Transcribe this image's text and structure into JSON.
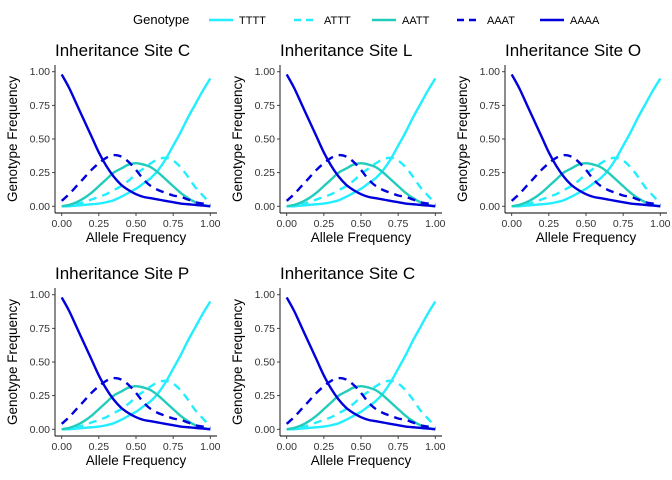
{
  "legend": {
    "title": "Genotype",
    "entries": [
      {
        "label": "TTTT",
        "color": "#22EEFF",
        "dash": "solid"
      },
      {
        "label": "ATTT",
        "color": "#22EEFF",
        "dash": "dashed"
      },
      {
        "label": "AATT",
        "color": "#22CCBB",
        "dash": "solid"
      },
      {
        "label": "AAAT",
        "color": "#0000DD",
        "dash": "dashed"
      },
      {
        "label": "AAAA",
        "color": "#0000DD",
        "dash": "solid"
      }
    ]
  },
  "chart_data": [
    {
      "type": "line",
      "title": "Inheritance Site C",
      "xlabel": "Allele Frequency",
      "ylabel": "Genotype Frequency"
    },
    {
      "type": "line",
      "title": "Inheritance Site L",
      "xlabel": "Allele Frequency",
      "ylabel": "Genotype Frequency"
    },
    {
      "type": "line",
      "title": "Inheritance Site O",
      "xlabel": "Allele Frequency",
      "ylabel": "Genotype Frequency"
    },
    {
      "type": "line",
      "title": "Inheritance Site P",
      "xlabel": "Allele Frequency",
      "ylabel": "Genotype Frequency"
    },
    {
      "type": "line",
      "title": "Inheritance Site C",
      "xlabel": "Allele Frequency",
      "ylabel": "Genotype Frequency"
    }
  ],
  "shared": {
    "xlim": [
      0,
      1
    ],
    "ylim": [
      0,
      1
    ],
    "xticks": [
      0,
      0.25,
      0.5,
      0.75,
      1
    ],
    "xtick_labels": [
      "0.00",
      "0.25",
      "0.50",
      "0.75",
      "1.00"
    ],
    "yticks": [
      0,
      0.25,
      0.5,
      0.75,
      1
    ],
    "ytick_labels": [
      "0.00",
      "0.25",
      "0.50",
      "0.75",
      "1.00"
    ],
    "grid": false,
    "legend_position": "top",
    "x": [
      0,
      0.05,
      0.1,
      0.15,
      0.2,
      0.25,
      0.3,
      0.35,
      0.4,
      0.45,
      0.5,
      0.55,
      0.6,
      0.65,
      0.7,
      0.75,
      0.8,
      0.85,
      0.9,
      0.95,
      1
    ],
    "series": [
      {
        "name": "TTTT",
        "values": [
          0.0,
          0.0,
          0.005,
          0.01,
          0.015,
          0.02,
          0.03,
          0.045,
          0.07,
          0.1,
          0.13,
          0.17,
          0.21,
          0.27,
          0.35,
          0.45,
          0.55,
          0.66,
          0.76,
          0.86,
          0.95
        ]
      },
      {
        "name": "ATTT",
        "values": [
          0.0,
          0.005,
          0.015,
          0.03,
          0.05,
          0.07,
          0.09,
          0.12,
          0.15,
          0.19,
          0.24,
          0.28,
          0.32,
          0.35,
          0.36,
          0.34,
          0.29,
          0.22,
          0.14,
          0.08,
          0.02
        ]
      },
      {
        "name": "AATT",
        "values": [
          0.0,
          0.01,
          0.03,
          0.06,
          0.1,
          0.15,
          0.2,
          0.25,
          0.28,
          0.31,
          0.32,
          0.31,
          0.29,
          0.25,
          0.2,
          0.15,
          0.1,
          0.06,
          0.03,
          0.01,
          0.0
        ]
      },
      {
        "name": "AAAT",
        "values": [
          0.04,
          0.09,
          0.15,
          0.21,
          0.27,
          0.32,
          0.36,
          0.38,
          0.37,
          0.33,
          0.27,
          0.2,
          0.15,
          0.12,
          0.1,
          0.08,
          0.07,
          0.05,
          0.03,
          0.02,
          0.01
        ]
      },
      {
        "name": "AAAA",
        "values": [
          0.98,
          0.88,
          0.76,
          0.64,
          0.52,
          0.4,
          0.3,
          0.22,
          0.16,
          0.12,
          0.09,
          0.07,
          0.06,
          0.05,
          0.04,
          0.03,
          0.02,
          0.015,
          0.01,
          0.005,
          0.0
        ]
      }
    ]
  }
}
